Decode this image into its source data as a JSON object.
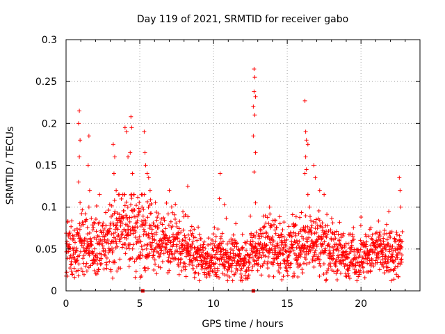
{
  "chart_data": {
    "type": "scatter",
    "title": "Day 119 of 2021, SRMTID for receiver gabo",
    "xlabel": "GPS time / hours",
    "ylabel": "SRMTID / TECUs",
    "xlim": [
      0,
      24
    ],
    "ylim": [
      0,
      0.3
    ],
    "xticks": [
      0,
      5,
      10,
      15,
      20
    ],
    "yticks": [
      0,
      0.05,
      0.1,
      0.15,
      0.2,
      0.25,
      0.3
    ],
    "xtick_labels": [
      "0",
      "5",
      "10",
      "15",
      "20"
    ],
    "ytick_labels": [
      "0",
      "0.05",
      "0.1",
      "0.15",
      "0.2",
      "0.25",
      "0.3"
    ],
    "grid": true,
    "marker": "plus",
    "marker_color": "#ff0000",
    "baseline_markers": [
      5.2,
      12.7
    ],
    "series": [
      {
        "name": "SRMTID",
        "baseline_profile": [
          [
            0.0,
            0.048
          ],
          [
            0.5,
            0.05
          ],
          [
            1.0,
            0.058
          ],
          [
            1.5,
            0.055
          ],
          [
            2.0,
            0.052
          ],
          [
            2.5,
            0.055
          ],
          [
            3.0,
            0.06
          ],
          [
            3.5,
            0.065
          ],
          [
            4.0,
            0.075
          ],
          [
            4.5,
            0.075
          ],
          [
            5.0,
            0.07
          ],
          [
            5.5,
            0.065
          ],
          [
            6.0,
            0.06
          ],
          [
            6.5,
            0.06
          ],
          [
            7.0,
            0.055
          ],
          [
            7.5,
            0.055
          ],
          [
            8.0,
            0.05
          ],
          [
            8.5,
            0.045
          ],
          [
            9.0,
            0.04
          ],
          [
            9.5,
            0.035
          ],
          [
            10.0,
            0.04
          ],
          [
            10.5,
            0.045
          ],
          [
            11.0,
            0.04
          ],
          [
            11.5,
            0.038
          ],
          [
            12.0,
            0.035
          ],
          [
            12.5,
            0.045
          ],
          [
            13.0,
            0.05
          ],
          [
            13.5,
            0.058
          ],
          [
            14.0,
            0.055
          ],
          [
            14.5,
            0.05
          ],
          [
            15.0,
            0.048
          ],
          [
            15.5,
            0.05
          ],
          [
            16.0,
            0.055
          ],
          [
            16.5,
            0.06
          ],
          [
            17.0,
            0.06
          ],
          [
            17.5,
            0.055
          ],
          [
            18.0,
            0.05
          ],
          [
            18.5,
            0.045
          ],
          [
            19.0,
            0.042
          ],
          [
            19.5,
            0.04
          ],
          [
            20.0,
            0.04
          ],
          [
            20.5,
            0.045
          ],
          [
            21.0,
            0.048
          ],
          [
            21.5,
            0.045
          ],
          [
            22.0,
            0.043
          ],
          [
            22.5,
            0.045
          ],
          [
            22.8,
            0.045
          ]
        ],
        "spikes": [
          [
            0.9,
            0.215
          ],
          [
            0.85,
            0.2
          ],
          [
            0.95,
            0.18
          ],
          [
            0.9,
            0.16
          ],
          [
            0.85,
            0.13
          ],
          [
            1.55,
            0.185
          ],
          [
            1.5,
            0.15
          ],
          [
            1.6,
            0.12
          ],
          [
            1.55,
            0.1
          ],
          [
            3.2,
            0.175
          ],
          [
            3.3,
            0.16
          ],
          [
            3.25,
            0.14
          ],
          [
            3.4,
            0.12
          ],
          [
            4.0,
            0.195
          ],
          [
            4.1,
            0.19
          ],
          [
            4.4,
            0.208
          ],
          [
            4.45,
            0.195
          ],
          [
            4.2,
            0.16
          ],
          [
            4.35,
            0.165
          ],
          [
            4.5,
            0.14
          ],
          [
            5.3,
            0.19
          ],
          [
            5.35,
            0.165
          ],
          [
            5.4,
            0.15
          ],
          [
            5.5,
            0.14
          ],
          [
            5.7,
            0.12
          ],
          [
            5.6,
            0.135
          ],
          [
            7.0,
            0.12
          ],
          [
            8.25,
            0.125
          ],
          [
            10.45,
            0.14
          ],
          [
            10.4,
            0.11
          ],
          [
            12.75,
            0.265
          ],
          [
            12.8,
            0.255
          ],
          [
            12.75,
            0.238
          ],
          [
            12.85,
            0.232
          ],
          [
            12.7,
            0.22
          ],
          [
            12.8,
            0.21
          ],
          [
            12.7,
            0.185
          ],
          [
            12.85,
            0.165
          ],
          [
            12.75,
            0.142
          ],
          [
            12.85,
            0.105
          ],
          [
            13.8,
            0.1
          ],
          [
            16.2,
            0.227
          ],
          [
            16.25,
            0.19
          ],
          [
            16.3,
            0.18
          ],
          [
            16.4,
            0.175
          ],
          [
            16.25,
            0.16
          ],
          [
            16.3,
            0.145
          ],
          [
            16.2,
            0.14
          ],
          [
            16.8,
            0.15
          ],
          [
            16.9,
            0.135
          ],
          [
            17.2,
            0.12
          ],
          [
            17.5,
            0.115
          ],
          [
            22.6,
            0.135
          ],
          [
            22.65,
            0.12
          ],
          [
            22.7,
            0.1
          ]
        ]
      }
    ]
  }
}
